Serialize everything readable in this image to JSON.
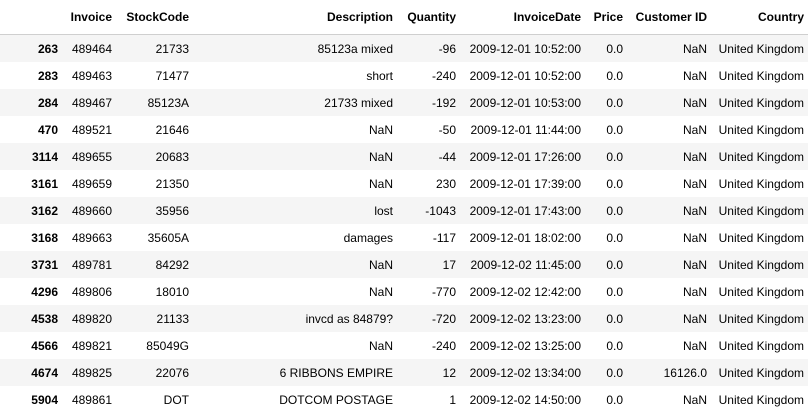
{
  "table": {
    "columns": [
      "",
      "Invoice",
      "StockCode",
      "Description",
      "Quantity",
      "InvoiceDate",
      "Price",
      "Customer ID",
      "Country"
    ],
    "rows": [
      {
        "index": "263",
        "invoice": "489464",
        "stock_code": "21733",
        "description": "85123a mixed",
        "quantity": "-96",
        "invoice_date": "2009-12-01 10:52:00",
        "price": "0.0",
        "customer_id": "NaN",
        "country": "United Kingdom"
      },
      {
        "index": "283",
        "invoice": "489463",
        "stock_code": "71477",
        "description": "short",
        "quantity": "-240",
        "invoice_date": "2009-12-01 10:52:00",
        "price": "0.0",
        "customer_id": "NaN",
        "country": "United Kingdom"
      },
      {
        "index": "284",
        "invoice": "489467",
        "stock_code": "85123A",
        "description": "21733 mixed",
        "quantity": "-192",
        "invoice_date": "2009-12-01 10:53:00",
        "price": "0.0",
        "customer_id": "NaN",
        "country": "United Kingdom"
      },
      {
        "index": "470",
        "invoice": "489521",
        "stock_code": "21646",
        "description": "NaN",
        "quantity": "-50",
        "invoice_date": "2009-12-01 11:44:00",
        "price": "0.0",
        "customer_id": "NaN",
        "country": "United Kingdom"
      },
      {
        "index": "3114",
        "invoice": "489655",
        "stock_code": "20683",
        "description": "NaN",
        "quantity": "-44",
        "invoice_date": "2009-12-01 17:26:00",
        "price": "0.0",
        "customer_id": "NaN",
        "country": "United Kingdom"
      },
      {
        "index": "3161",
        "invoice": "489659",
        "stock_code": "21350",
        "description": "NaN",
        "quantity": "230",
        "invoice_date": "2009-12-01 17:39:00",
        "price": "0.0",
        "customer_id": "NaN",
        "country": "United Kingdom"
      },
      {
        "index": "3162",
        "invoice": "489660",
        "stock_code": "35956",
        "description": "lost",
        "quantity": "-1043",
        "invoice_date": "2009-12-01 17:43:00",
        "price": "0.0",
        "customer_id": "NaN",
        "country": "United Kingdom"
      },
      {
        "index": "3168",
        "invoice": "489663",
        "stock_code": "35605A",
        "description": "damages",
        "quantity": "-117",
        "invoice_date": "2009-12-01 18:02:00",
        "price": "0.0",
        "customer_id": "NaN",
        "country": "United Kingdom"
      },
      {
        "index": "3731",
        "invoice": "489781",
        "stock_code": "84292",
        "description": "NaN",
        "quantity": "17",
        "invoice_date": "2009-12-02 11:45:00",
        "price": "0.0",
        "customer_id": "NaN",
        "country": "United Kingdom"
      },
      {
        "index": "4296",
        "invoice": "489806",
        "stock_code": "18010",
        "description": "NaN",
        "quantity": "-770",
        "invoice_date": "2009-12-02 12:42:00",
        "price": "0.0",
        "customer_id": "NaN",
        "country": "United Kingdom"
      },
      {
        "index": "4538",
        "invoice": "489820",
        "stock_code": "21133",
        "description": "invcd as 84879?",
        "quantity": "-720",
        "invoice_date": "2009-12-02 13:23:00",
        "price": "0.0",
        "customer_id": "NaN",
        "country": "United Kingdom"
      },
      {
        "index": "4566",
        "invoice": "489821",
        "stock_code": "85049G",
        "description": "NaN",
        "quantity": "-240",
        "invoice_date": "2009-12-02 13:25:00",
        "price": "0.0",
        "customer_id": "NaN",
        "country": "United Kingdom"
      },
      {
        "index": "4674",
        "invoice": "489825",
        "stock_code": "22076",
        "description": "6 RIBBONS EMPIRE",
        "quantity": "12",
        "invoice_date": "2009-12-02 13:34:00",
        "price": "0.0",
        "customer_id": "16126.0",
        "country": "United Kingdom"
      },
      {
        "index": "5904",
        "invoice": "489861",
        "stock_code": "DOT",
        "description": "DOTCOM POSTAGE",
        "quantity": "1",
        "invoice_date": "2009-12-02 14:50:00",
        "price": "0.0",
        "customer_id": "NaN",
        "country": "United Kingdom"
      }
    ]
  }
}
